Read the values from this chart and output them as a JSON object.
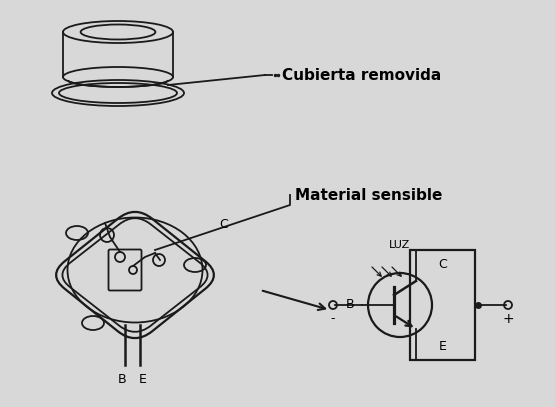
{
  "background_color": "#d8d8d8",
  "label_cubierta": "Cubierta removida",
  "label_material": "Material sensible",
  "label_C": "C",
  "label_B": "B",
  "label_E": "E",
  "label_LUZ": "LUZ",
  "label_minus": "-",
  "label_plus": "+",
  "line_color": "#1a1a1a",
  "text_color": "#000000",
  "fig_width": 5.55,
  "fig_height": 4.07,
  "dpi": 100
}
